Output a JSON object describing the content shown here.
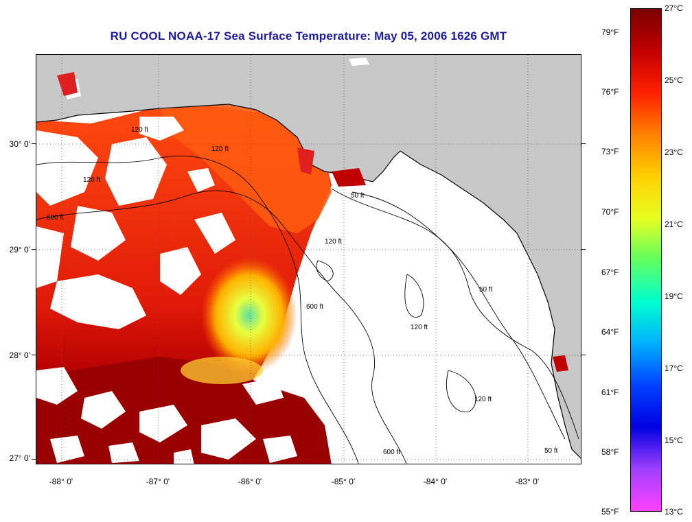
{
  "title": "RU COOL  NOAA-17  Sea Surface Temperature:  May 05, 2006 1626 GMT",
  "map": {
    "lat_labels": [
      "30° 0'",
      "29° 0'",
      "28° 0'",
      "27° 0'"
    ],
    "lon_labels": [
      "-88° 0'",
      "-87° 0'",
      "-86° 0'",
      "-85° 0'",
      "-84° 0'",
      "-83° 0'"
    ],
    "contour_labels": [
      "120 ft",
      "120 ft",
      "120 ft",
      "50 ft",
      "600 ft",
      "120 ft",
      "600 ft",
      "120 ft",
      "50 ft",
      "120 ft",
      "600 ft",
      "50 ft"
    ],
    "colors": {
      "land": "#c8c8c8",
      "cloud": "#ffffff"
    }
  },
  "colorbar": {
    "fahrenheit": [
      "79°F",
      "76°F",
      "73°F",
      "70°F",
      "67°F",
      "64°F",
      "61°F",
      "58°F",
      "55°F"
    ],
    "celsius": [
      "27°C",
      "25°C",
      "23°C",
      "21°C",
      "19°C",
      "17°C",
      "15°C",
      "13°C"
    ],
    "gradient": [
      "#7a0000",
      "#c00000",
      "#ff2000",
      "#ff8000",
      "#ffd000",
      "#e8ff20",
      "#60ff60",
      "#00ffd0",
      "#00b0ff",
      "#0040ff",
      "#0000e0",
      "#a040ff",
      "#ff40ff"
    ]
  }
}
